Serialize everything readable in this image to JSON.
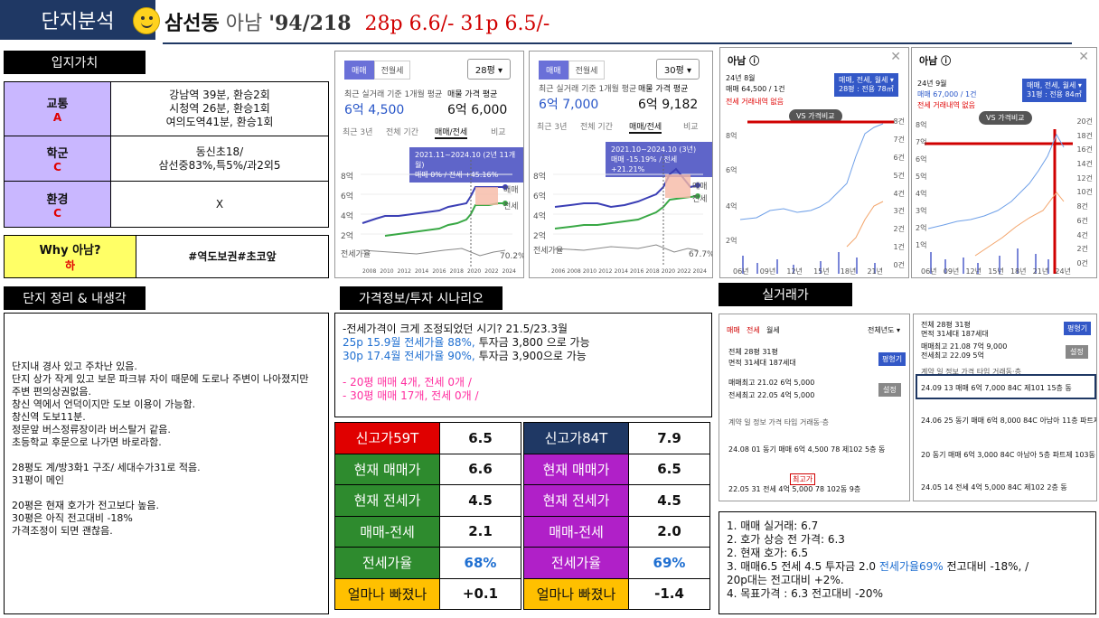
{
  "header": {
    "section_label": "단지분석",
    "dong": "삼선동",
    "apartment": "아남",
    "year_units": "'94/218",
    "price_summary": "28p 6.6/- 31p 6.5/-"
  },
  "location": {
    "title": "입지가치",
    "rows": [
      {
        "label": "교통",
        "grade": "A",
        "value": "강남역 39분, 환승2회\n시청역 26분, 환승1회\n여의도역41분, 환승1회"
      },
      {
        "label": "학군",
        "grade": "C",
        "value": "동신초18/\n삼선중83%,특5%/과2외5"
      },
      {
        "label": "환경",
        "grade": "C",
        "value": "X"
      }
    ],
    "why": {
      "label": "Why 아남?",
      "grade": "하",
      "value": "#역도보권#초코앞"
    }
  },
  "memo": {
    "title": "단지 정리 & 내생각",
    "text": "단지내 경사 있고 주차난 있음.\n단지 상가 작게 있고 보문 파크뷰 자이 때문에 도로나 주변이 나아졌지만 주변 편의상권없음.\n창신 역에서 언덕이지만 도보 이용이 가능함.\n창신역 도보11분.\n정문앞 버스정류장이라 버스탈거 같음.\n초등학교 후문으로 나가면 바로라함.\n\n28평도 계/방3화1 구조/ 세대수가31로 적음.\n31평이 메인\n\n20평은 현재 호가가 전고보다 높음.\n30평은 아직 전고대비 -18%\n가격조정이 되면 괜찮음."
  },
  "scenario": {
    "title": "가격정보/투자 시나리오",
    "line1": "-전세가격이 크게 조정되었던 시기? 21.5/23.3월",
    "line2_blue": "25p 15.9월 전세가율 88%,",
    "line2_rest": " 투자금 3,800 으로 가능",
    "line3_blue": "30p 17.4월 전세가율 90%,",
    "line3_rest": " 투자금 3,900으로 가능",
    "line4": "-   20평 매매 4개, 전세 0개 /",
    "line5": "-   30평 매매 17개, 전세 0개 /"
  },
  "table59": {
    "rows": [
      {
        "label": "신고가59T",
        "value": "6.5",
        "color": "#e00000"
      },
      {
        "label": "현재 매매가",
        "value": "6.6",
        "color": "#2e8b2e"
      },
      {
        "label": "현재 전세가",
        "value": "4.5",
        "color": "#2e8b2e"
      },
      {
        "label": "매매-전세",
        "value": "2.1",
        "color": "#2e8b2e"
      },
      {
        "label": "전세가율",
        "value": "68%",
        "color": "#2e8b2e"
      },
      {
        "label": "얼마나 빠졌나",
        "value": "+0.1",
        "color": "#ffc000"
      }
    ]
  },
  "table84": {
    "rows": [
      {
        "label": "신고가84T",
        "value": "7.9",
        "color": "#1f3864"
      },
      {
        "label": "현재 매매가",
        "value": "6.5",
        "color": "#b020c8"
      },
      {
        "label": "현재 전세가",
        "value": "4.5",
        "color": "#b020c8"
      },
      {
        "label": "매매-전세",
        "value": "2.0",
        "color": "#b020c8"
      },
      {
        "label": "전세가율",
        "value": "69%",
        "color": "#b020c8"
      },
      {
        "label": "얼마나 빠졌나",
        "value": "-1.4",
        "color": "#ffc000"
      }
    ]
  },
  "chart28": {
    "tab_sale": "매매",
    "tab_jeonse": "전월세",
    "select": "28평 ▾",
    "caption": "최근 실거래 기준 1개월 평균",
    "sale_label": "매물 가격 평균",
    "price_left": "6억 4,500",
    "price_right": "6억 6,000",
    "sub_tabs": [
      "최근 3년",
      "전체 기간",
      "매매/전세",
      "비교"
    ],
    "tip": "2021.11~2024.10 (2년 11개월)\n매매 0% / 전세 +45.16%",
    "y_labels": [
      "8억",
      "6억",
      "4억",
      "2억"
    ],
    "x_labels": [
      "2008",
      "2010",
      "2012",
      "2014",
      "2016",
      "2018",
      "2020",
      "2022",
      "2024"
    ],
    "legend_sale": "매매",
    "legend_jeonse": "전세",
    "ratio_label": "전세가율",
    "ratio_value": "70.2%"
  },
  "chart31": {
    "tab_sale": "매매",
    "tab_jeonse": "전월세",
    "select": "30평 ▾",
    "caption": "최근 실거래 기준 1개월 평균",
    "sale_label": "매물 가격 평균",
    "price_left": "6억 7,000",
    "price_right": "6억 9,182",
    "sub_tabs": [
      "최근 3년",
      "전체 기간",
      "매매/전세",
      "비교"
    ],
    "tip": "2021.10~2024.10 (3년)\n매매 -15.19% / 전세 +21.21%",
    "y_labels": [
      "8억",
      "6억",
      "4억",
      "2억"
    ],
    "x_labels": [
      "2006",
      "2008",
      "2010",
      "2012",
      "2014",
      "2016",
      "2018",
      "2020",
      "2022",
      "2024"
    ],
    "legend_sale": "매매",
    "legend_jeonse": "전세",
    "ratio_label": "전세가율",
    "ratio_value": "67.7%"
  },
  "hist28": {
    "name": "아남 ⓘ",
    "date": "24년 8월",
    "deal": "매매 64,500 / 1건",
    "note": "전세 거래내역 없음",
    "badge": "매매, 전세, 월세 ▾\n28평 : 전용 78㎡",
    "vs": "VS 가격비교",
    "y_left": [
      "8억",
      "6억",
      "4억",
      "2억"
    ],
    "y_right": [
      "8건",
      "7건",
      "6건",
      "5건",
      "4건",
      "3건",
      "2건",
      "1건",
      "0건"
    ],
    "x_labels": [
      "06년",
      "09년",
      "12년",
      "15년",
      "18년",
      "21년"
    ]
  },
  "hist31": {
    "name": "아남 ⓘ",
    "date": "24년 9월",
    "deal": "매매 67,000 / 1건",
    "note": "전세 거래내역 없음",
    "badge": "매매, 전세, 월세 ▾\n31평 : 전용 84㎡",
    "vs": "VS 가격비교",
    "y_left": [
      "8억",
      "7억",
      "6억",
      "5억",
      "4억",
      "3억",
      "2억",
      "1억"
    ],
    "y_right": [
      "20건",
      "18건",
      "16건",
      "14건",
      "12건",
      "10건",
      "8건",
      "6건",
      "4건",
      "2건",
      "0건"
    ],
    "x_labels": [
      "06년",
      "09년",
      "12년",
      "15년",
      "18년",
      "21년",
      "24년"
    ]
  },
  "realdeal": {
    "title": "실거래가",
    "left": {
      "tabs": [
        "매매",
        "전세",
        "월세"
      ],
      "period": "전체년도 ▾",
      "area_row1": "전체   28평   31평",
      "area_row2": "면적   31세대  187세대",
      "btn": "평형기",
      "max_sale": "매매최고 21.02 6억 5,000",
      "max_jeonse": "전세최고 22.05 4억 5,000",
      "set": "설정",
      "header": "계약  일  정보       가격      타입  거래동·층",
      "row1": "24.08  01  동기  매매 6억 4,500   78   제102 5층 동",
      "row2_badge": "최고가",
      "row2": "22.05  31      전세 4억 5,000   78   102동 9층"
    },
    "right": {
      "area_row1": "전체   28평   31평",
      "area_row2": "면적   31세대  187세대",
      "btn": "평형기",
      "max_sale": "매매최고 21.08 7억 9,000",
      "max_jeonse": "전세최고 22.09 5억",
      "set": "설정",
      "header": "계약  일  정보       가격      타입  거래동·층",
      "row1": "24.09  13     매매 6억 7,000   84C   제101 15층 동",
      "row2": "24.06  25  동기  매매 6억 8,000   84C   아남아 11층 파트제 103동",
      "row3": "       20  동기  매매 6억 3,000   84C   아남아 5층 파트제 103동",
      "row4": "24.05  14      전세 4억 5,000   84C   제102 2층 동"
    }
  },
  "summary": {
    "line1": "1. 매매 실거래: 6.7",
    "line2": "2. 호가 상승 전 가격: 6.3",
    "line3": "2. 현재 호가: 6.5",
    "line4a": "3. 매매6.5 전세 4.5 투자금 2.0 ",
    "line4b": "전세가율69%",
    "line4c": "  전고대비 -18%, /",
    "line5": "20p대는 전고대비 +2%.",
    "line6": "4. 목표가격 : 6.3 전고대비 -20%"
  }
}
